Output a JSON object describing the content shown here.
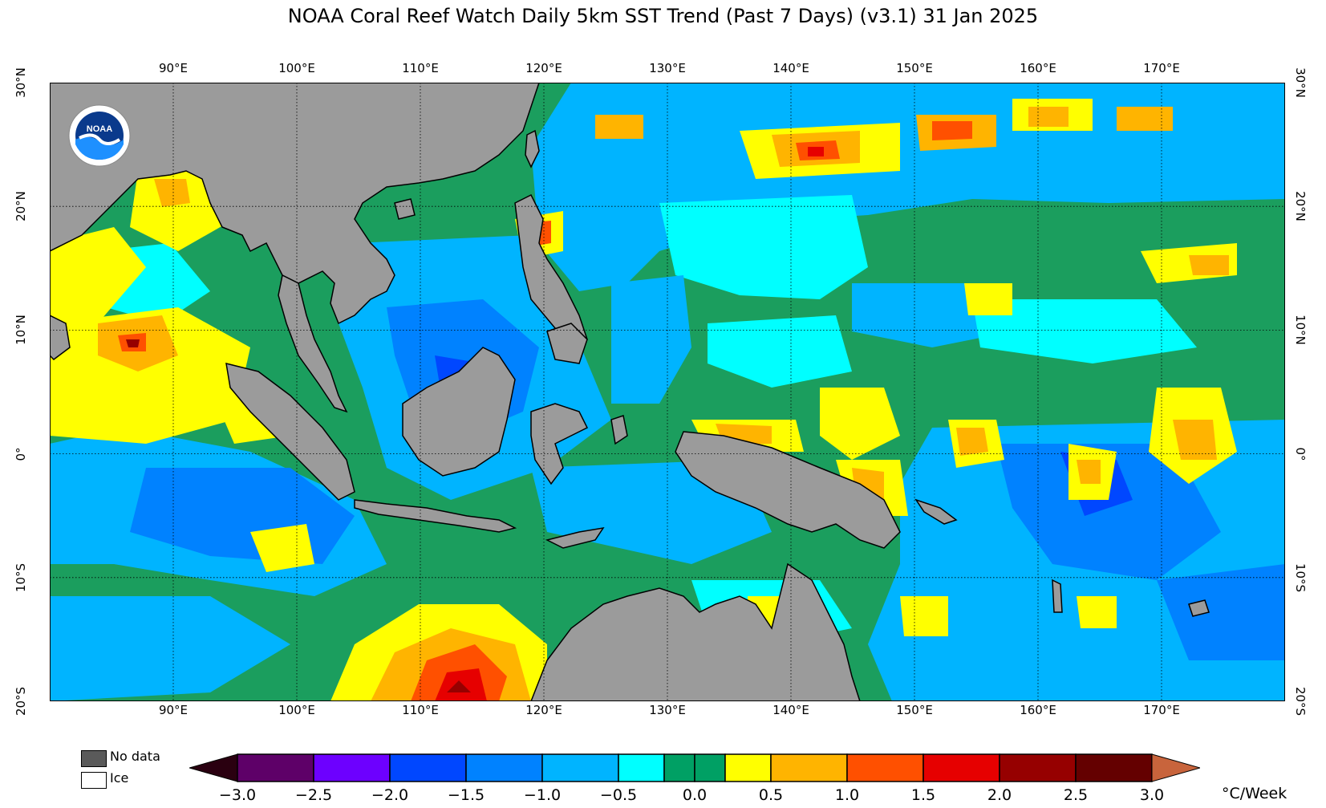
{
  "title": "NOAA Coral Reef Watch Daily 5km SST Trend (Past 7 Days)  (v3.1)   31 Jan 2025",
  "lon_ticks": [
    "90°E",
    "100°E",
    "110°E",
    "120°E",
    "130°E",
    "140°E",
    "150°E",
    "160°E",
    "170°E"
  ],
  "lat_ticks_left": [
    "30°N",
    "20°N",
    "10°N",
    "0°",
    "10°S",
    "20°S"
  ],
  "lat_ticks_right": [
    "30°N",
    "20°N",
    "10°N",
    "0°",
    "10°S",
    "20°S"
  ],
  "map_extent": {
    "lon_min": 80,
    "lon_max": 180,
    "lat_min": -20,
    "lat_max": 30
  },
  "legend": {
    "no_data_label": "No data",
    "ice_label": "Ice",
    "no_data_color": "#5a5a5a",
    "ice_color": "#ffffff"
  },
  "colorbar": {
    "unit": "°C/Week",
    "tick_labels": [
      "−3.0",
      "−2.5",
      "−2.0",
      "−1.5",
      "−1.0",
      "−0.5",
      "0.0",
      "0.5",
      "1.0",
      "1.5",
      "2.0",
      "2.5",
      "3.0"
    ],
    "under_color": "#2a0010",
    "over_color": "#c8643c",
    "bins": [
      {
        "from": -3.0,
        "to": -2.5,
        "color": "#5e0068"
      },
      {
        "from": -2.5,
        "to": -2.0,
        "color": "#6d00ff"
      },
      {
        "from": -2.0,
        "to": -1.5,
        "color": "#0047ff"
      },
      {
        "from": -1.5,
        "to": -1.0,
        "color": "#0082ff"
      },
      {
        "from": -1.0,
        "to": -0.5,
        "color": "#00b4ff"
      },
      {
        "from": -0.5,
        "to": -0.2,
        "color": "#00ffff"
      },
      {
        "from": -0.2,
        "to": 0.0,
        "color": "#00a064"
      },
      {
        "from": 0.0,
        "to": 0.2,
        "color": "#00a064"
      },
      {
        "from": 0.2,
        "to": 0.5,
        "color": "#ffff00"
      },
      {
        "from": 0.5,
        "to": 1.0,
        "color": "#ffb400"
      },
      {
        "from": 1.0,
        "to": 1.5,
        "color": "#ff5000"
      },
      {
        "from": 1.5,
        "to": 2.0,
        "color": "#e60000"
      },
      {
        "from": 2.0,
        "to": 2.5,
        "color": "#960000"
      },
      {
        "from": 2.5,
        "to": 3.0,
        "color": "#640000"
      }
    ]
  },
  "colors": {
    "land": "#9b9b9b",
    "ocean_base": "#1b9e5e",
    "cool": "#00b4ff",
    "cyan": "#00ffff",
    "blue": "#0082ff",
    "deep_blue": "#0047ff",
    "yellow": "#ffff00",
    "orange": "#ffb400",
    "red_orange": "#ff5000",
    "red": "#e60000",
    "dark_red": "#960000"
  },
  "logo": {
    "text": "NOAA",
    "circle_color": "#0a3a8c",
    "wave_color": "#1e90ff"
  }
}
